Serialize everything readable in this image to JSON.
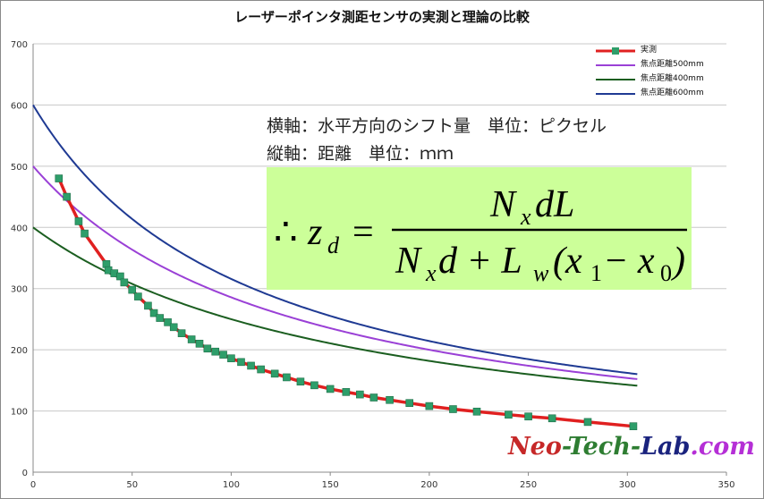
{
  "chart_data": {
    "type": "scatter",
    "title": "レーザーポインタ測距センサの実測と理論の比較",
    "xlim": [
      0,
      350
    ],
    "ylim": [
      0,
      700
    ],
    "x_ticks": [
      0,
      50,
      100,
      150,
      200,
      250,
      300,
      350
    ],
    "y_ticks": [
      0,
      100,
      200,
      300,
      400,
      500,
      600,
      700
    ],
    "grid": "horizontal",
    "legend_position": "top-right",
    "series": [
      {
        "name": "実測",
        "color": "#e02020",
        "marker_color": "#2e9e6a",
        "x": [
          13,
          17,
          23,
          26,
          37,
          38,
          41,
          44,
          46,
          50,
          53,
          58,
          61,
          64,
          68,
          71,
          75,
          80,
          84,
          88,
          92,
          96,
          100,
          105,
          110,
          115,
          122,
          128,
          135,
          142,
          150,
          158,
          165,
          172,
          180,
          190,
          200,
          212,
          224,
          240,
          250,
          262,
          280,
          303
        ],
        "y": [
          480,
          450,
          410,
          390,
          340,
          330,
          325,
          320,
          310,
          298,
          287,
          272,
          260,
          252,
          245,
          237,
          227,
          217,
          210,
          202,
          197,
          192,
          186,
          180,
          174,
          168,
          161,
          155,
          148,
          142,
          136,
          131,
          127,
          122,
          118,
          113,
          108,
          103,
          99,
          94,
          91,
          88,
          82,
          75
        ]
      },
      {
        "name": "焦点距離500mm",
        "color": "#9a40d6",
        "L": 500
      },
      {
        "name": "焦点距離400mm",
        "color": "#1b5e20",
        "L": 400
      },
      {
        "name": "焦点距離600mm",
        "color": "#1f3a93",
        "L": 600
      }
    ],
    "curve_k": 0.3,
    "curve_x_end": 305
  },
  "annotations": {
    "axis_note_x": "横軸：水平方向のシフト量　単位：ピクセル",
    "axis_note_y": "縦軸：距離　単位：ｍｍ",
    "formula": {
      "therefore": "∴",
      "lhs": "z",
      "lhs_sub": "d",
      "equals": "=",
      "numerator": "N",
      "numerator_sub": "x",
      "numerator_rest": "dL",
      "den_n": "N",
      "den_n_sub": "x",
      "den_d_plus": "d + L",
      "den_l_sub": "w",
      "den_paren": "(x",
      "den_x1_sub": "1",
      "den_minus": " − x",
      "den_x0_sub": "0",
      "den_close": ")"
    }
  },
  "watermark": {
    "p1": "Neo",
    "p2": "-Tech-",
    "p3": "Lab",
    "p4": ".com"
  }
}
